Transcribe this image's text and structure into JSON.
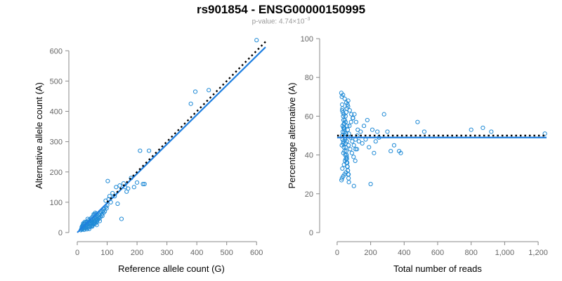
{
  "title": "rs901854 - ENSG00000150995",
  "subtitle": {
    "prefix": "p-value: 4.74×10",
    "exponent": "−3"
  },
  "colors": {
    "points": "#1f8ad6",
    "fit_line": "#1f7fe0",
    "reference_line": "#000000",
    "axis": "#888888"
  },
  "chart_data": [
    {
      "type": "scatter",
      "title": "",
      "xlabel": "Reference allele count (G)",
      "ylabel": "Alternative allele count (A)",
      "xlim": [
        0,
        630
      ],
      "ylim": [
        0,
        640
      ],
      "xticks": [
        0,
        100,
        200,
        300,
        400,
        500,
        600
      ],
      "yticks": [
        0,
        100,
        200,
        300,
        400,
        500,
        600
      ],
      "xtick_labels": [
        "0",
        "100",
        "200",
        "300",
        "400",
        "500",
        "600"
      ],
      "ytick_labels": [
        "0",
        "100",
        "200",
        "300",
        "400",
        "500",
        "600"
      ],
      "points": [
        [
          12,
          8
        ],
        [
          14,
          12
        ],
        [
          15,
          18
        ],
        [
          16,
          10
        ],
        [
          17,
          22
        ],
        [
          18,
          15
        ],
        [
          19,
          25
        ],
        [
          20,
          12
        ],
        [
          21,
          20
        ],
        [
          22,
          28
        ],
        [
          23,
          9
        ],
        [
          24,
          18
        ],
        [
          25,
          30
        ],
        [
          26,
          14
        ],
        [
          27,
          24
        ],
        [
          28,
          33
        ],
        [
          29,
          17
        ],
        [
          30,
          22
        ],
        [
          31,
          27
        ],
        [
          32,
          11
        ],
        [
          33,
          35
        ],
        [
          34,
          20
        ],
        [
          35,
          26
        ],
        [
          36,
          16
        ],
        [
          37,
          31
        ],
        [
          38,
          40
        ],
        [
          39,
          22
        ],
        [
          40,
          28
        ],
        [
          41,
          18
        ],
        [
          42,
          36
        ],
        [
          43,
          25
        ],
        [
          44,
          45
        ],
        [
          45,
          30
        ],
        [
          46,
          21
        ],
        [
          47,
          38
        ],
        [
          48,
          27
        ],
        [
          49,
          50
        ],
        [
          50,
          33
        ],
        [
          51,
          24
        ],
        [
          52,
          42
        ],
        [
          53,
          30
        ],
        [
          54,
          55
        ],
        [
          55,
          36
        ],
        [
          56,
          28
        ],
        [
          57,
          47
        ],
        [
          58,
          34
        ],
        [
          59,
          60
        ],
        [
          60,
          40
        ],
        [
          61,
          30
        ],
        [
          62,
          52
        ],
        [
          63,
          38
        ],
        [
          64,
          62
        ],
        [
          65,
          45
        ],
        [
          66,
          35
        ],
        [
          67,
          56
        ],
        [
          68,
          42
        ],
        [
          70,
          50
        ],
        [
          72,
          58
        ],
        [
          74,
          46
        ],
        [
          76,
          63
        ],
        [
          78,
          52
        ],
        [
          80,
          68
        ],
        [
          82,
          60
        ],
        [
          84,
          55
        ],
        [
          86,
          72
        ],
        [
          88,
          65
        ],
        [
          90,
          78
        ],
        [
          92,
          70
        ],
        [
          95,
          85
        ],
        [
          98,
          80
        ],
        [
          100,
          90
        ],
        [
          105,
          110
        ],
        [
          108,
          120
        ],
        [
          112,
          100
        ],
        [
          118,
          130
        ],
        [
          125,
          120
        ],
        [
          130,
          150
        ],
        [
          135,
          95
        ],
        [
          142,
          155
        ],
        [
          148,
          45
        ],
        [
          155,
          162
        ],
        [
          160,
          150
        ],
        [
          165,
          135
        ],
        [
          170,
          145
        ],
        [
          180,
          180
        ],
        [
          190,
          150
        ],
        [
          200,
          165
        ],
        [
          210,
          270
        ],
        [
          220,
          160
        ],
        [
          225,
          160
        ],
        [
          240,
          270
        ],
        [
          380,
          425
        ],
        [
          395,
          465
        ],
        [
          440,
          470
        ],
        [
          600,
          635
        ],
        [
          102,
          170
        ],
        [
          95,
          105
        ],
        [
          60,
          65
        ],
        [
          55,
          60
        ],
        [
          45,
          40
        ],
        [
          35,
          45
        ],
        [
          25,
          35
        ],
        [
          20,
          30
        ],
        [
          18,
          20
        ],
        [
          16,
          14
        ],
        [
          30,
          15
        ],
        [
          40,
          12
        ],
        [
          50,
          20
        ],
        [
          65,
          25
        ],
        [
          75,
          38
        ]
      ],
      "reference_line": {
        "label": "",
        "from": [
          100,
          100
        ],
        "to": [
          630,
          630
        ]
      },
      "fit_line": {
        "label": "",
        "from": [
          0,
          0
        ],
        "to": [
          630,
          612
        ]
      }
    },
    {
      "type": "scatter",
      "title": "",
      "xlabel": "Total number of reads",
      "ylabel": "Percentage alternative (A)",
      "xlim": [
        -50,
        1250
      ],
      "ylim": [
        0,
        100
      ],
      "xticks": [
        0,
        200,
        400,
        600,
        800,
        1000,
        1200
      ],
      "yticks": [
        0,
        20,
        40,
        60,
        80,
        100
      ],
      "xtick_labels": [
        "0",
        "200",
        "400",
        "600",
        "800",
        "1,000",
        "1,200"
      ],
      "ytick_labels": [
        "0",
        "20",
        "40",
        "60",
        "80",
        "100"
      ],
      "points": [
        [
          25,
          72
        ],
        [
          28,
          70
        ],
        [
          30,
          66
        ],
        [
          32,
          64
        ],
        [
          34,
          62
        ],
        [
          36,
          60
        ],
        [
          38,
          58
        ],
        [
          40,
          56
        ],
        [
          42,
          54
        ],
        [
          44,
          52
        ],
        [
          46,
          50
        ],
        [
          48,
          48
        ],
        [
          50,
          46
        ],
        [
          52,
          44
        ],
        [
          54,
          42
        ],
        [
          56,
          40
        ],
        [
          58,
          38
        ],
        [
          60,
          36
        ],
        [
          62,
          34
        ],
        [
          64,
          32
        ],
        [
          66,
          30
        ],
        [
          68,
          28
        ],
        [
          70,
          26
        ],
        [
          30,
          50
        ],
        [
          32,
          48
        ],
        [
          34,
          52
        ],
        [
          36,
          46
        ],
        [
          38,
          54
        ],
        [
          40,
          44
        ],
        [
          42,
          56
        ],
        [
          44,
          42
        ],
        [
          46,
          58
        ],
        [
          48,
          40
        ],
        [
          50,
          60
        ],
        [
          52,
          38
        ],
        [
          54,
          62
        ],
        [
          56,
          36
        ],
        [
          58,
          64
        ],
        [
          60,
          34
        ],
        [
          62,
          66
        ],
        [
          64,
          32
        ],
        [
          66,
          68
        ],
        [
          68,
          30
        ],
        [
          35,
          71
        ],
        [
          45,
          69
        ],
        [
          55,
          67
        ],
        [
          65,
          65
        ],
        [
          75,
          63
        ],
        [
          85,
          61
        ],
        [
          95,
          59
        ],
        [
          28,
          45
        ],
        [
          33,
          55
        ],
        [
          38,
          47
        ],
        [
          43,
          53
        ],
        [
          48,
          49
        ],
        [
          53,
          51
        ],
        [
          58,
          47
        ],
        [
          63,
          53
        ],
        [
          68,
          45
        ],
        [
          73,
          55
        ],
        [
          78,
          43
        ],
        [
          83,
          57
        ],
        [
          88,
          41
        ],
        [
          93,
          59
        ],
        [
          98,
          39
        ],
        [
          103,
          61
        ],
        [
          108,
          37
        ],
        [
          113,
          57
        ],
        [
          118,
          43
        ],
        [
          123,
          53
        ],
        [
          26,
          27
        ],
        [
          29,
          28
        ],
        [
          36,
          29
        ],
        [
          44,
          30
        ],
        [
          52,
          31
        ],
        [
          31,
          33
        ],
        [
          41,
          35
        ],
        [
          47,
          37
        ],
        [
          57,
          39
        ],
        [
          37,
          41
        ],
        [
          100,
          24
        ],
        [
          110,
          48
        ],
        [
          120,
          50
        ],
        [
          130,
          47
        ],
        [
          140,
          52
        ],
        [
          150,
          46
        ],
        [
          160,
          55
        ],
        [
          170,
          48
        ],
        [
          180,
          58
        ],
        [
          190,
          44
        ],
        [
          200,
          25
        ],
        [
          210,
          53
        ],
        [
          220,
          41
        ],
        [
          230,
          47
        ],
        [
          240,
          52
        ],
        [
          250,
          49
        ],
        [
          280,
          61
        ],
        [
          300,
          52
        ],
        [
          320,
          42
        ],
        [
          340,
          45
        ],
        [
          370,
          42
        ],
        [
          380,
          41
        ],
        [
          480,
          57
        ],
        [
          520,
          52
        ],
        [
          800,
          53
        ],
        [
          870,
          54
        ],
        [
          920,
          52
        ],
        [
          1240,
          51
        ],
        [
          30,
          63
        ],
        [
          40,
          61
        ],
        [
          50,
          57
        ],
        [
          60,
          55
        ],
        [
          70,
          51
        ],
        [
          80,
          49
        ],
        [
          90,
          47
        ],
        [
          100,
          45
        ],
        [
          110,
          43
        ]
      ],
      "reference_line": {
        "label": "",
        "from": [
          0,
          50
        ],
        "to": [
          1250,
          50
        ]
      },
      "fit_line": {
        "label": "",
        "from": [
          0,
          49
        ],
        "to": [
          1250,
          49
        ]
      }
    }
  ]
}
